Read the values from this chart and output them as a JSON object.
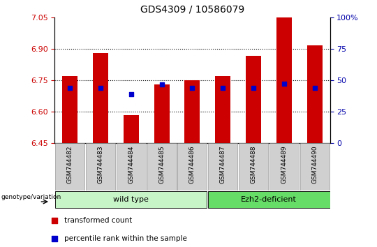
{
  "title": "GDS4309 / 10586079",
  "samples": [
    "GSM744482",
    "GSM744483",
    "GSM744484",
    "GSM744485",
    "GSM744486",
    "GSM744487",
    "GSM744488",
    "GSM744489",
    "GSM744490"
  ],
  "red_values": [
    6.77,
    6.88,
    6.585,
    6.73,
    6.75,
    6.77,
    6.865,
    7.05,
    6.915
  ],
  "blue_values": [
    6.715,
    6.715,
    6.685,
    6.73,
    6.715,
    6.715,
    6.715,
    6.735,
    6.715
  ],
  "ylim_left": [
    6.45,
    7.05
  ],
  "ylim_right": [
    0,
    100
  ],
  "yticks_left": [
    6.45,
    6.6,
    6.75,
    6.9,
    7.05
  ],
  "yticks_right": [
    0,
    25,
    50,
    75,
    100
  ],
  "bar_color": "#CC0000",
  "dot_color": "#0000CC",
  "bar_bottom": 6.45,
  "tick_color_left": "#CC0000",
  "tick_color_right": "#0000AA",
  "legend_red": "transformed count",
  "legend_blue": "percentile rank within the sample",
  "genotype_label": "genotype/variation",
  "group_wild_color": "#c8f5c8",
  "group_ezh2_color": "#66dd66",
  "gray_box_color": "#d0d0d0",
  "grid_vals": [
    6.6,
    6.75,
    6.9
  ]
}
